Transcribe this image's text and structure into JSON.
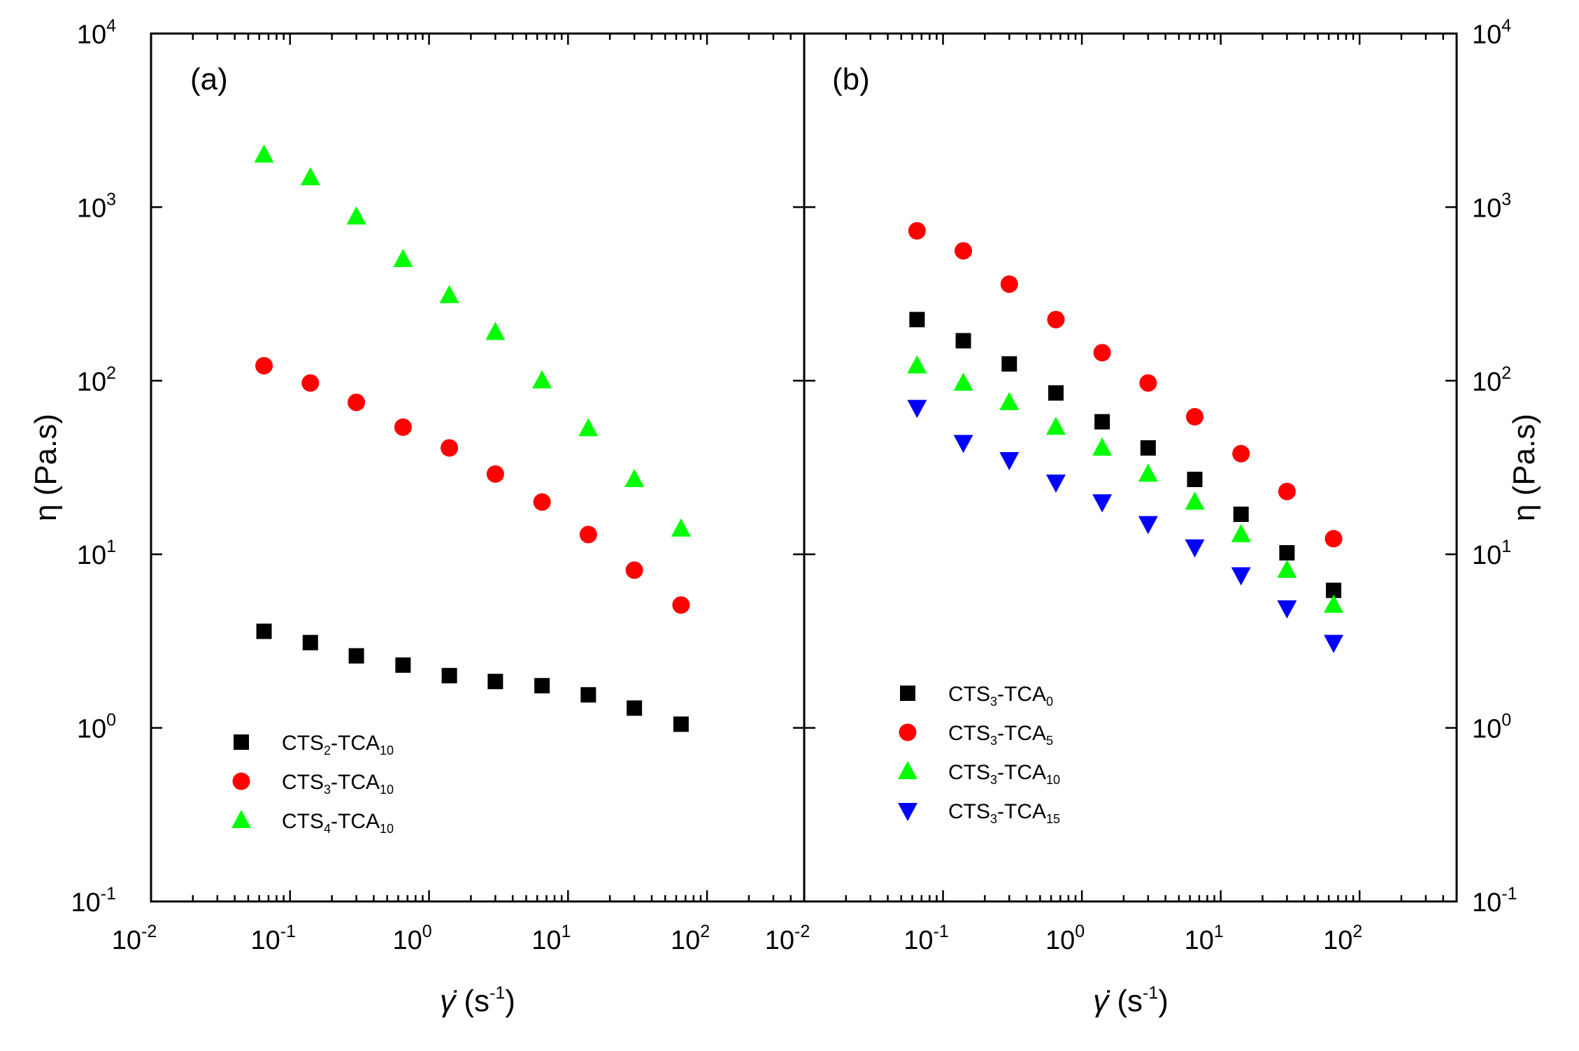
{
  "chart_data": [
    {
      "panel": "(a)",
      "type": "scatter",
      "xscale": "log",
      "yscale": "log",
      "xlim": [
        0.01,
        500
      ],
      "ylim": [
        0.1,
        10000
      ],
      "xlabel_main": "γ̇",
      "xlabel_unit": " (s",
      "xlabel_exp": "-1",
      "xlabel_close": ")",
      "ylabel": "η (Pa.s)",
      "ylabel_side": "left",
      "xticks": [
        {
          "base": "10",
          "exp": "-2",
          "value": 0.01
        },
        {
          "base": "10",
          "exp": "-1",
          "value": 0.1
        },
        {
          "base": "10",
          "exp": "0",
          "value": 1
        },
        {
          "base": "10",
          "exp": "1",
          "value": 10
        },
        {
          "base": "10",
          "exp": "2",
          "value": 100
        }
      ],
      "yticks": [
        {
          "base": "10",
          "exp": "-1",
          "value": 0.1
        },
        {
          "base": "10",
          "exp": "0",
          "value": 1
        },
        {
          "base": "10",
          "exp": "1",
          "value": 10
        },
        {
          "base": "10",
          "exp": "2",
          "value": 100
        },
        {
          "base": "10",
          "exp": "3",
          "value": 1000
        },
        {
          "base": "10",
          "exp": "4",
          "value": 10000
        }
      ],
      "legend_position": "bottom-left",
      "series": [
        {
          "name": "CTS2-TCA10",
          "label_a": "CTS",
          "sub1": "2",
          "label_b": "-TCA",
          "sub2": "10",
          "marker": "square",
          "color": "#000000",
          "x": [
            0.065,
            0.14,
            0.3,
            0.65,
            1.4,
            3,
            6.5,
            14,
            30,
            65
          ],
          "y": [
            3.6,
            3.1,
            2.6,
            2.3,
            2.0,
            1.85,
            1.75,
            1.55,
            1.3,
            1.05
          ]
        },
        {
          "name": "CTS3-TCA10",
          "label_a": "CTS",
          "sub1": "3",
          "label_b": "-TCA",
          "sub2": "10",
          "marker": "circle",
          "color": "#ff0000",
          "x": [
            0.065,
            0.14,
            0.3,
            0.65,
            1.4,
            3,
            6.5,
            14,
            30,
            65
          ],
          "y": [
            122,
            97,
            75,
            54,
            41,
            29,
            20,
            13,
            8.1,
            5.1
          ]
        },
        {
          "name": "CTS4-TCA10",
          "label_a": "CTS",
          "sub1": "4",
          "label_b": "-TCA",
          "sub2": "10",
          "marker": "triangle-up",
          "color": "#00ff00",
          "x": [
            0.065,
            0.14,
            0.3,
            0.65,
            1.4,
            3,
            6.5,
            14,
            30,
            65
          ],
          "y": [
            2000,
            1480,
            880,
            500,
            310,
            190,
            100,
            53,
            27,
            14
          ]
        }
      ]
    },
    {
      "panel": "(b)",
      "type": "scatter",
      "xscale": "log",
      "yscale": "log",
      "xlim": [
        0.01,
        500
      ],
      "ylim": [
        0.1,
        10000
      ],
      "xlabel_main": "γ̇",
      "xlabel_unit": " (s",
      "xlabel_exp": "-1",
      "xlabel_close": ")",
      "ylabel": "η (Pa.s)",
      "ylabel_side": "right",
      "xticks": [
        {
          "base": "10",
          "exp": "-2",
          "value": 0.01
        },
        {
          "base": "10",
          "exp": "-1",
          "value": 0.1
        },
        {
          "base": "10",
          "exp": "0",
          "value": 1
        },
        {
          "base": "10",
          "exp": "1",
          "value": 10
        },
        {
          "base": "10",
          "exp": "2",
          "value": 100
        }
      ],
      "yticks": [
        {
          "base": "10",
          "exp": "-1",
          "value": 0.1
        },
        {
          "base": "10",
          "exp": "0",
          "value": 1
        },
        {
          "base": "10",
          "exp": "1",
          "value": 10
        },
        {
          "base": "10",
          "exp": "2",
          "value": 100
        },
        {
          "base": "10",
          "exp": "3",
          "value": 1000
        },
        {
          "base": "10",
          "exp": "4",
          "value": 10000
        }
      ],
      "legend_position": "bottom-left",
      "series": [
        {
          "name": "CTS3-TCA0",
          "label_a": "CTS",
          "sub1": "3",
          "label_b": "-TCA",
          "sub2": "0",
          "marker": "square",
          "color": "#000000",
          "x": [
            0.065,
            0.14,
            0.3,
            0.65,
            1.4,
            3,
            6.5,
            14,
            30,
            65
          ],
          "y": [
            225,
            170,
            125,
            85,
            58,
            41,
            27,
            17,
            10.2,
            6.2
          ]
        },
        {
          "name": "CTS3-TCA5",
          "label_a": "CTS",
          "sub1": "3",
          "label_b": "-TCA",
          "sub2": "5",
          "marker": "circle",
          "color": "#ff0000",
          "x": [
            0.065,
            0.14,
            0.3,
            0.65,
            1.4,
            3,
            6.5,
            14,
            30,
            65
          ],
          "y": [
            730,
            560,
            360,
            225,
            145,
            97,
            62,
            38,
            23,
            12.3
          ]
        },
        {
          "name": "CTS3-TCA10",
          "label_a": "CTS",
          "sub1": "3",
          "label_b": "-TCA",
          "sub2": "10",
          "marker": "triangle-up",
          "color": "#00ff00",
          "x": [
            0.065,
            0.14,
            0.3,
            0.65,
            1.4,
            3,
            6.5,
            14,
            30,
            65
          ],
          "y": [
            122,
            97,
            75,
            54,
            41,
            29,
            20,
            13,
            8.1,
            5.1
          ]
        },
        {
          "name": "CTS3-TCA15",
          "label_a": "CTS",
          "sub1": "3",
          "label_b": "-TCA",
          "sub2": "15",
          "marker": "triangle-down",
          "color": "#0000ff",
          "x": [
            0.065,
            0.14,
            0.3,
            0.65,
            1.4,
            3,
            6.5,
            14,
            30,
            65
          ],
          "y": [
            70,
            44,
            35,
            26,
            20,
            15,
            11,
            7.6,
            4.9,
            3.1
          ]
        }
      ]
    }
  ]
}
